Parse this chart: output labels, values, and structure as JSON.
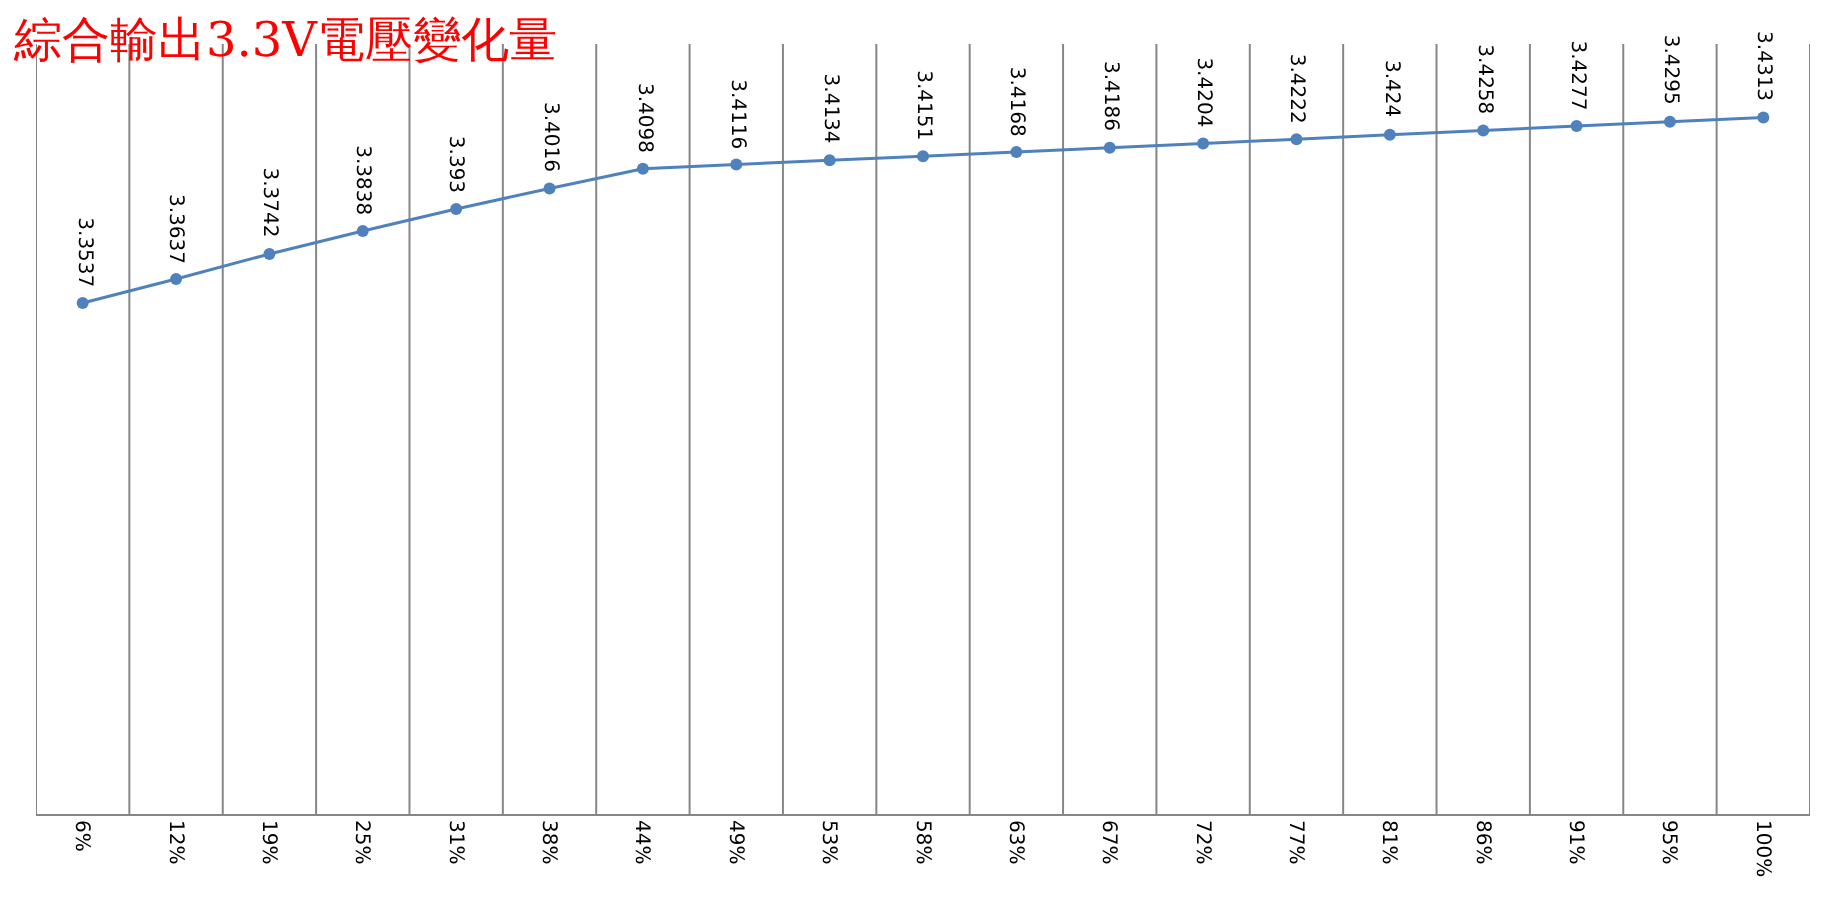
{
  "chart_data": {
    "type": "line",
    "title": "綜合輸出3.3V電壓變化量",
    "categories": [
      "6%",
      "12%",
      "19%",
      "25%",
      "31%",
      "38%",
      "44%",
      "49%",
      "53%",
      "58%",
      "63%",
      "67%",
      "72%",
      "77%",
      "81%",
      "86%",
      "91%",
      "95%",
      "100%"
    ],
    "series": [
      {
        "color": "#4f81bd",
        "values": [
          3.3537,
          3.3637,
          3.3742,
          3.3838,
          3.393,
          3.4016,
          3.4098,
          3.4116,
          3.4134,
          3.4151,
          3.4168,
          3.4186,
          3.4204,
          3.4222,
          3.424,
          3.4258,
          3.4277,
          3.4295,
          3.4313
        ]
      }
    ],
    "ylim": [
      3.14,
      3.462
    ],
    "data_labels": true,
    "grid": "x",
    "tick_labels": "x",
    "marker": "circle",
    "line_style": "solid",
    "legend": false
  }
}
